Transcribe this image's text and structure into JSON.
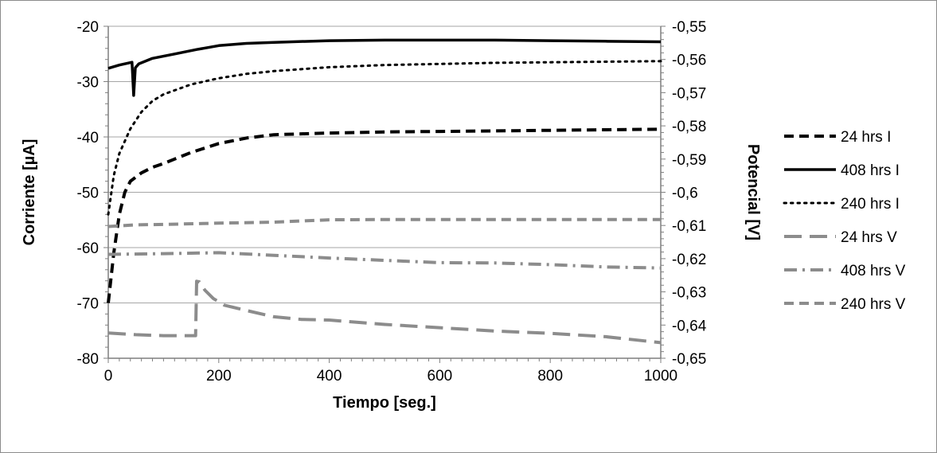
{
  "chart_data": {
    "type": "line",
    "xlabel": "Tiempo [seg.]",
    "ylabel_left": "Corriente [µA]",
    "ylabel_right": "Potencial [V]",
    "xlim": [
      0,
      1000
    ],
    "ylim_left": [
      -80,
      -20
    ],
    "ylim_right": [
      -0.65,
      -0.55
    ],
    "x_ticks": [
      "0",
      "200",
      "400",
      "600",
      "800",
      "1000"
    ],
    "y_left_ticks": [
      "-80",
      "-70",
      "-60",
      "-50",
      "-40",
      "-30",
      "-20"
    ],
    "y_right_ticks": [
      "-0,65",
      "-0,64",
      "-0,63",
      "-0,62",
      "-0,61",
      "-0,6",
      "-0,59",
      "-0,58",
      "-0,57",
      "-0,56",
      "-0,55"
    ],
    "grid": true,
    "legend_position": "right",
    "series": [
      {
        "name": "24 hrs I",
        "axis": "left",
        "color": "#000000",
        "style": "dashed",
        "points": [
          [
            0,
            -70
          ],
          [
            10,
            -61
          ],
          [
            20,
            -54
          ],
          [
            30,
            -50
          ],
          [
            40,
            -48
          ],
          [
            60,
            -46.5
          ],
          [
            80,
            -45.5
          ],
          [
            100,
            -44.8
          ],
          [
            120,
            -44
          ],
          [
            150,
            -42.8
          ],
          [
            200,
            -41.2
          ],
          [
            250,
            -40.2
          ],
          [
            300,
            -39.6
          ],
          [
            400,
            -39.3
          ],
          [
            500,
            -39.1
          ],
          [
            600,
            -39
          ],
          [
            700,
            -38.9
          ],
          [
            800,
            -38.8
          ],
          [
            900,
            -38.7
          ],
          [
            1000,
            -38.6
          ]
        ]
      },
      {
        "name": "408 hrs I",
        "axis": "left",
        "color": "#000000",
        "style": "solid",
        "points": [
          [
            0,
            -27.6
          ],
          [
            20,
            -27
          ],
          [
            38,
            -26.6
          ],
          [
            43,
            -26.5
          ],
          [
            46,
            -32.5
          ],
          [
            49,
            -27.5
          ],
          [
            55,
            -26.8
          ],
          [
            80,
            -25.8
          ],
          [
            120,
            -25
          ],
          [
            160,
            -24.2
          ],
          [
            200,
            -23.5
          ],
          [
            250,
            -23.1
          ],
          [
            300,
            -22.9
          ],
          [
            400,
            -22.6
          ],
          [
            500,
            -22.5
          ],
          [
            600,
            -22.5
          ],
          [
            700,
            -22.5
          ],
          [
            800,
            -22.6
          ],
          [
            900,
            -22.7
          ],
          [
            1000,
            -22.8
          ]
        ]
      },
      {
        "name": "240 hrs I",
        "axis": "left",
        "color": "#000000",
        "style": "dotted",
        "points": [
          [
            0,
            -54
          ],
          [
            10,
            -47
          ],
          [
            20,
            -43
          ],
          [
            40,
            -38.5
          ],
          [
            60,
            -35.5
          ],
          [
            80,
            -33.5
          ],
          [
            100,
            -32.3
          ],
          [
            150,
            -30.5
          ],
          [
            200,
            -29.4
          ],
          [
            250,
            -28.6
          ],
          [
            300,
            -28.1
          ],
          [
            400,
            -27.4
          ],
          [
            500,
            -27
          ],
          [
            600,
            -26.8
          ],
          [
            700,
            -26.6
          ],
          [
            800,
            -26.5
          ],
          [
            900,
            -26.4
          ],
          [
            1000,
            -26.3
          ]
        ]
      },
      {
        "name": "24 hrs V",
        "axis": "right",
        "color": "#8c8c8c",
        "style": "longdash",
        "points": [
          [
            0,
            -0.6424
          ],
          [
            50,
            -0.6429
          ],
          [
            100,
            -0.6432
          ],
          [
            150,
            -0.6432
          ],
          [
            158,
            -0.6432
          ],
          [
            160,
            -0.6268
          ],
          [
            165,
            -0.627
          ],
          [
            175,
            -0.6295
          ],
          [
            190,
            -0.632
          ],
          [
            210,
            -0.634
          ],
          [
            250,
            -0.6356
          ],
          [
            300,
            -0.6375
          ],
          [
            350,
            -0.6383
          ],
          [
            400,
            -0.6385
          ],
          [
            500,
            -0.6398
          ],
          [
            600,
            -0.6408
          ],
          [
            700,
            -0.6418
          ],
          [
            800,
            -0.6425
          ],
          [
            900,
            -0.6435
          ],
          [
            1000,
            -0.6453
          ]
        ]
      },
      {
        "name": "408 hrs V",
        "axis": "right",
        "color": "#8c8c8c",
        "style": "dashdot",
        "points": [
          [
            0,
            -0.6187
          ],
          [
            100,
            -0.6185
          ],
          [
            200,
            -0.6182
          ],
          [
            300,
            -0.619
          ],
          [
            400,
            -0.6198
          ],
          [
            500,
            -0.6205
          ],
          [
            600,
            -0.6212
          ],
          [
            700,
            -0.6213
          ],
          [
            800,
            -0.6218
          ],
          [
            900,
            -0.6225
          ],
          [
            1000,
            -0.6228
          ]
        ]
      },
      {
        "name": "240 hrs V",
        "axis": "right",
        "color": "#8c8c8c",
        "style": "dashed",
        "points": [
          [
            0,
            -0.6103
          ],
          [
            50,
            -0.6098
          ],
          [
            100,
            -0.6097
          ],
          [
            200,
            -0.6093
          ],
          [
            300,
            -0.609
          ],
          [
            400,
            -0.6083
          ],
          [
            500,
            -0.6082
          ],
          [
            600,
            -0.6082
          ],
          [
            700,
            -0.6082
          ],
          [
            800,
            -0.6082
          ],
          [
            900,
            -0.6082
          ],
          [
            1000,
            -0.6082
          ]
        ]
      }
    ]
  }
}
